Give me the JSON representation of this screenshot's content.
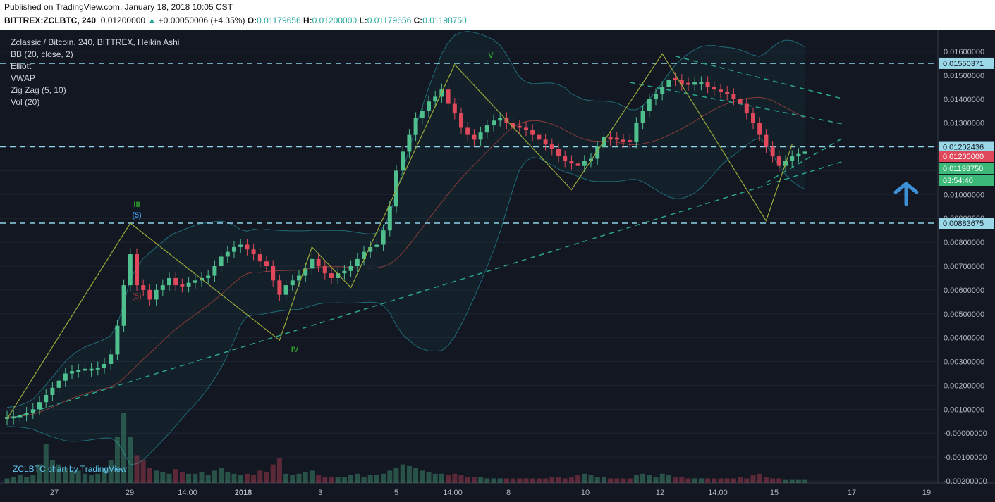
{
  "header": {
    "published": "Published on TradingView.com, January 18, 2018 10:05 CST",
    "symbol": "BITTREX:ZCLBTC, 240",
    "last": "0.01200000",
    "change": "+0.00050006 (+4.35%)",
    "o_label": "O:",
    "o": "0.01179656",
    "h_label": "H:",
    "h": "0.01200000",
    "l_label": "L:",
    "l": "0.01179656",
    "c_label": "C:",
    "c": "0.01198750"
  },
  "legend": {
    "title": "Zclassic / Bitcoin, 240, BITTREX, Heikin Ashi",
    "indicators": [
      "BB (20, close, 2)",
      "Elliott",
      "VWAP",
      "Zig Zag (5, 10)",
      "Vol (20)"
    ]
  },
  "watermark": "ZCLBTC chart by TradingView",
  "colors": {
    "background": "#131722",
    "up": "#4fbf8e",
    "down": "#e0485b",
    "dashed": "#8fd3e6",
    "trend": "#2aa58a",
    "zigzag": "#9ba83a",
    "arrow": "#3d8fd6"
  },
  "chart_data": {
    "type": "candlestick",
    "chart_style": "Heikin Ashi",
    "ylim": [
      -0.002,
      0.0165
    ],
    "y_ticks": [
      0.016,
      0.015,
      0.014,
      0.013,
      0.012,
      0.011,
      0.01,
      0.009,
      0.008,
      0.007,
      0.006,
      0.005,
      0.004,
      0.003,
      0.002,
      0.001,
      -0.0,
      -0.001,
      -0.002
    ],
    "y_tick_labels": [
      "0.01600000",
      "0.01500000",
      "0.01400000",
      "0.01300000",
      "0.01200000",
      "0.01100000",
      "0.01000000",
      "0.00900000",
      "0.00800000",
      "0.00700000",
      "0.00600000",
      "0.00500000",
      "0.00400000",
      "0.00300000",
      "0.00200000",
      "0.00100000",
      "-0.00000000",
      "-0.00100000",
      "-0.00200000"
    ],
    "x_labels": [
      "27",
      "29",
      "14:00",
      "2018",
      "3",
      "5",
      "14:00",
      "8",
      "10",
      "12",
      "14:00",
      "15",
      "17",
      "19"
    ],
    "horizontal_levels": [
      {
        "value": 0.0155,
        "label": "0.01550371"
      },
      {
        "value": 0.012,
        "label": "0.01202436"
      },
      {
        "value": 0.0088,
        "label": "0.00883675"
      }
    ],
    "price_tags": [
      {
        "value": 0.012,
        "label": "0.01200000",
        "kind": "last"
      },
      {
        "value": 0.01198,
        "label": "0.01198750",
        "kind": "close"
      },
      {
        "value": 0.01085,
        "label": "03:54:40",
        "kind": "countdown"
      }
    ],
    "elliott_labels": [
      "III",
      "(5)",
      "IV",
      "V",
      "(5)"
    ],
    "zigzag": [
      [
        0,
        0.0006
      ],
      [
        19,
        0.0088
      ],
      [
        42,
        0.0039
      ],
      [
        47,
        0.0078
      ],
      [
        53,
        0.0061
      ],
      [
        69,
        0.01545
      ],
      [
        87,
        0.0102
      ],
      [
        101,
        0.0159
      ],
      [
        117,
        0.0089
      ],
      [
        121,
        0.0121
      ]
    ],
    "trendlines": [
      {
        "from": [
          1,
          0.00065
        ],
        "to": [
          129,
          0.0114
        ]
      },
      {
        "from": [
          117,
          0.0105
        ],
        "to": [
          129,
          0.0124
        ]
      },
      {
        "from": [
          96,
          0.0147
        ],
        "to": [
          129,
          0.01295
        ]
      },
      {
        "from": [
          103,
          0.0158
        ],
        "to": [
          129,
          0.014
        ]
      }
    ],
    "candles": {
      "x": [
        0,
        1,
        2,
        3,
        4,
        5,
        6,
        7,
        8,
        9,
        10,
        11,
        12,
        13,
        14,
        15,
        16,
        17,
        18,
        19,
        20,
        21,
        22,
        23,
        24,
        25,
        26,
        27,
        28,
        29,
        30,
        31,
        32,
        33,
        34,
        35,
        36,
        37,
        38,
        39,
        40,
        41,
        42,
        43,
        44,
        45,
        46,
        47,
        48,
        49,
        50,
        51,
        52,
        53,
        54,
        55,
        56,
        57,
        58,
        59,
        60,
        61,
        62,
        63,
        64,
        65,
        66,
        67,
        68,
        69,
        70,
        71,
        72,
        73,
        74,
        75,
        76,
        77,
        78,
        79,
        80,
        81,
        82,
        83,
        84,
        85,
        86,
        87,
        88,
        89,
        90,
        91,
        92,
        93,
        94,
        95,
        96,
        97,
        98,
        99,
        100,
        101,
        102,
        103,
        104,
        105,
        106,
        107,
        108,
        109,
        110,
        111,
        112,
        113,
        114,
        115,
        116,
        117,
        118,
        119,
        120,
        121,
        122,
        123
      ],
      "close": [
        0.00068,
        0.0007,
        0.00075,
        0.00085,
        0.001,
        0.0013,
        0.0016,
        0.0019,
        0.0022,
        0.0025,
        0.0026,
        0.00265,
        0.0027,
        0.0027,
        0.00275,
        0.0029,
        0.0033,
        0.0045,
        0.0062,
        0.0075,
        0.0062,
        0.006,
        0.0056,
        0.006,
        0.0062,
        0.0065,
        0.0062,
        0.00615,
        0.0063,
        0.0064,
        0.0065,
        0.0066,
        0.007,
        0.0074,
        0.0076,
        0.0078,
        0.0079,
        0.0077,
        0.0075,
        0.0072,
        0.007,
        0.0064,
        0.0058,
        0.0062,
        0.0064,
        0.0066,
        0.0069,
        0.0073,
        0.007,
        0.0067,
        0.0065,
        0.0067,
        0.0068,
        0.007,
        0.0073,
        0.0076,
        0.0078,
        0.0079,
        0.0085,
        0.0095,
        0.011,
        0.0118,
        0.0125,
        0.0132,
        0.0135,
        0.0139,
        0.0141,
        0.0144,
        0.0138,
        0.0134,
        0.0128,
        0.0125,
        0.0123,
        0.0126,
        0.0129,
        0.0131,
        0.0132,
        0.013,
        0.0128,
        0.0128,
        0.0127,
        0.0125,
        0.0123,
        0.0121,
        0.0119,
        0.0116,
        0.0114,
        0.0113,
        0.0112,
        0.0114,
        0.0115,
        0.012,
        0.0124,
        0.0123,
        0.0123,
        0.0122,
        0.0122,
        0.013,
        0.0135,
        0.014,
        0.0142,
        0.0145,
        0.0148,
        0.0148,
        0.0146,
        0.0146,
        0.0147,
        0.0147,
        0.0145,
        0.0144,
        0.0143,
        0.0142,
        0.014,
        0.0138,
        0.0134,
        0.013,
        0.0125,
        0.012,
        0.0116,
        0.0112,
        0.0114,
        0.0116,
        0.0117,
        0.0118
      ],
      "direction": [
        "u",
        "u",
        "u",
        "u",
        "u",
        "u",
        "u",
        "u",
        "u",
        "u",
        "u",
        "u",
        "u",
        "u",
        "u",
        "u",
        "u",
        "u",
        "u",
        "u",
        "d",
        "d",
        "d",
        "u",
        "u",
        "u",
        "d",
        "d",
        "u",
        "u",
        "u",
        "u",
        "u",
        "u",
        "u",
        "u",
        "u",
        "d",
        "d",
        "d",
        "d",
        "d",
        "d",
        "u",
        "u",
        "u",
        "u",
        "u",
        "d",
        "d",
        "d",
        "u",
        "u",
        "u",
        "u",
        "u",
        "u",
        "u",
        "u",
        "u",
        "u",
        "u",
        "u",
        "u",
        "u",
        "u",
        "u",
        "u",
        "d",
        "d",
        "d",
        "d",
        "d",
        "u",
        "u",
        "u",
        "u",
        "d",
        "d",
        "d",
        "d",
        "d",
        "d",
        "d",
        "d",
        "d",
        "d",
        "d",
        "d",
        "u",
        "u",
        "u",
        "u",
        "d",
        "d",
        "d",
        "d",
        "u",
        "u",
        "u",
        "u",
        "u",
        "u",
        "d",
        "d",
        "d",
        "u",
        "u",
        "d",
        "d",
        "d",
        "d",
        "d",
        "d",
        "d",
        "d",
        "d",
        "d",
        "d",
        "d",
        "u",
        "u",
        "u",
        "u"
      ]
    },
    "volume": [
      0.0003,
      0.0004,
      0.0005,
      0.0004,
      0.0005,
      0.0012,
      0.0025,
      0.0015,
      0.0012,
      0.001,
      0.0008,
      0.0008,
      0.0006,
      0.0005,
      0.0006,
      0.001,
      0.0015,
      0.003,
      0.0045,
      0.003,
      0.0018,
      0.0015,
      0.001,
      0.0008,
      0.0007,
      0.0006,
      0.0009,
      0.0007,
      0.0006,
      0.0006,
      0.0007,
      0.0005,
      0.0008,
      0.001,
      0.0007,
      0.0006,
      0.0005,
      0.0006,
      0.0005,
      0.0008,
      0.0007,
      0.0012,
      0.0016,
      0.0006,
      0.0005,
      0.0006,
      0.0007,
      0.0008,
      0.0005,
      0.0004,
      0.0004,
      0.0004,
      0.0004,
      0.0005,
      0.0006,
      0.0004,
      0.0005,
      0.0005,
      0.0006,
      0.0008,
      0.001,
      0.0012,
      0.0011,
      0.001,
      0.0008,
      0.0007,
      0.0006,
      0.0006,
      0.0005,
      0.0006,
      0.0005,
      0.0004,
      0.0004,
      0.0004,
      0.0003,
      0.0003,
      0.0003,
      0.0003,
      0.0003,
      0.0003,
      0.0003,
      0.0003,
      0.0003,
      0.0003,
      0.0004,
      0.0004,
      0.0003,
      0.0004,
      0.0005,
      0.0006,
      0.0005,
      0.0004,
      0.0004,
      0.0003,
      0.0003,
      0.0003,
      0.0003,
      0.0005,
      0.0006,
      0.0005,
      0.0004,
      0.0006,
      0.0005,
      0.0004,
      0.0004,
      0.0003,
      0.0003,
      0.0003,
      0.0003,
      0.0003,
      0.0003,
      0.0003,
      0.0003,
      0.0004,
      0.0003,
      0.0005,
      0.0006,
      0.0004,
      0.0003,
      0.0003,
      0.0002,
      0.0002,
      0.0002,
      0.0002
    ]
  }
}
